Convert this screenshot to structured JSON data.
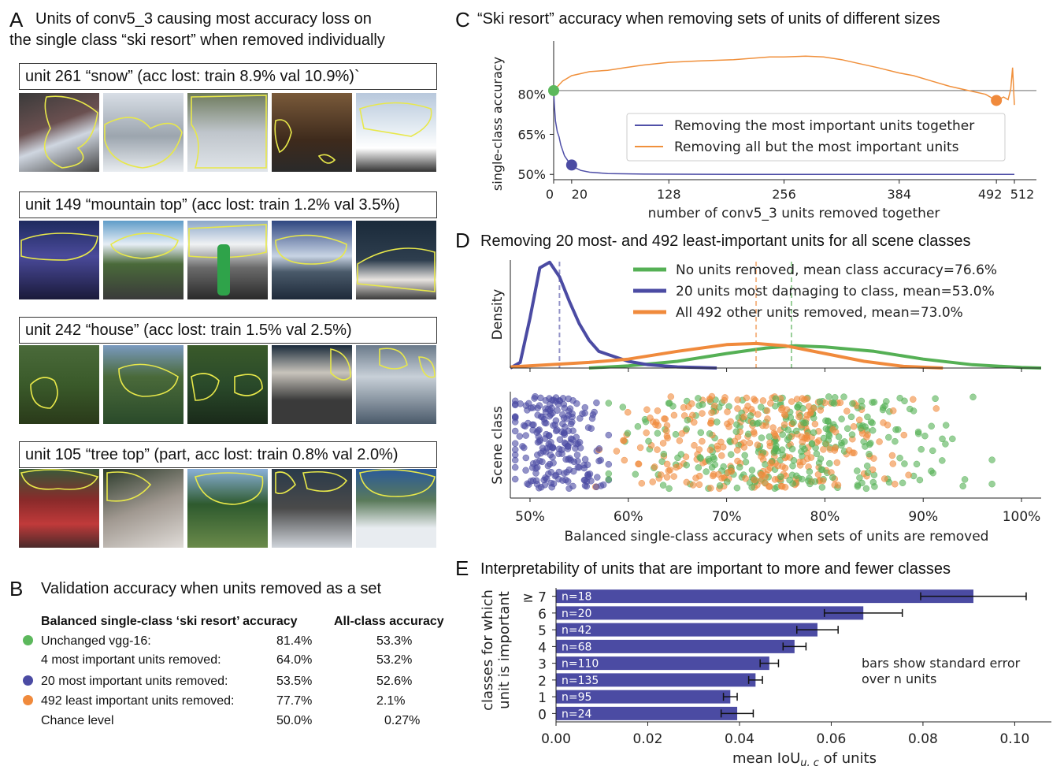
{
  "panelA": {
    "label": "A",
    "title_line1": "Units of conv5_3 causing most accuracy loss on",
    "title_line2": "the single class “ski resort” when removed individually",
    "units": [
      {
        "caption": "unit 261 “snow” (acc lost: train 8.9% val 10.9%)`"
      },
      {
        "caption": "unit 149 “mountain top” (acc lost: train 1.2% val 3.5%)"
      },
      {
        "caption": "unit 242 “house” (acc lost: train 1.5% val 2.5%)"
      },
      {
        "caption": "unit 105 “tree top” (part, acc lost: train 0.8% val 2.0%)"
      }
    ],
    "colors": {
      "outline": "#e8e84a"
    }
  },
  "panelB": {
    "label": "B",
    "title": "Validation accuracy when units removed as a set",
    "col1": "Balanced single-class ‘ski resort’ accuracy",
    "col2": "All-class accuracy",
    "rows": [
      {
        "label": "Unchanged vgg-16:",
        "v1": "81.4%",
        "v2": "53.3%",
        "dot": "#5cb85c"
      },
      {
        "label": "4 most important units removed:",
        "v1": "64.0%",
        "v2": "53.2%",
        "dot": ""
      },
      {
        "label": "20 most important units removed:",
        "v1": "53.5%",
        "v2": "52.6%",
        "dot": "#4b4ba3"
      },
      {
        "label": "492 least important units removed:",
        "v1": "77.7%",
        "v2": "2.1%",
        "dot": "#f08a3c"
      },
      {
        "label": "Chance level",
        "v1": "50.0%",
        "v2": "0.27%",
        "dot": ""
      }
    ]
  },
  "panelC": {
    "label": "C",
    "title": "“Ski resort” accuracy when removing sets of units of different sizes",
    "ylabel": "single-class accuracy",
    "xlabel": "number of conv5_3 units removed together",
    "legend": [
      {
        "name": "Removing the most important units together",
        "color": "#5050a8"
      },
      {
        "name": "Removing all but the most important units",
        "color": "#f0903c"
      }
    ]
  },
  "panelD": {
    "label": "D",
    "title": "Removing 20 most- and 492 least-important units for all scene classes",
    "density_ylabel": "Density",
    "scatter_ylabel": "Scene class",
    "xlabel": "Balanced single-class accuracy when sets of units are removed",
    "legend": [
      {
        "name": "No units removed, mean class accuracy=76.6%",
        "color": "#55b055"
      },
      {
        "name": "20 units most damaging to class, mean=53.0%",
        "color": "#4b4ba3"
      },
      {
        "name": "All 492 other units removed, mean=73.0%",
        "color": "#f08a3c"
      }
    ]
  },
  "panelE": {
    "label": "E",
    "title": "Interpretability of units that are important to more and fewer classes",
    "ylabel_line1": "classes for which",
    "ylabel_line2": "unit is important",
    "xlabel_prefix": "mean IoU",
    "xlabel_sub": "u, c",
    "xlabel_suffix": " of units",
    "note_line1": "bars show standard error",
    "note_line2": "over n units",
    "bar_color": "#4b4ba3"
  },
  "chart_data": [
    {
      "id": "C",
      "type": "line",
      "title": "“Ski resort” accuracy when removing sets of units of different sizes",
      "xlabel": "number of conv5_3 units removed together",
      "ylabel": "single-class accuracy",
      "xlim": [
        0,
        512
      ],
      "ylim": [
        48,
        100
      ],
      "xticks": [
        0,
        20,
        128,
        256,
        384,
        492,
        512
      ],
      "yticks": [
        50,
        65,
        80
      ],
      "ytick_labels": [
        "50%",
        "65%",
        "80%"
      ],
      "reference_line": 81.4,
      "series": [
        {
          "name": "Removing the most important units together",
          "color": "#5050a8",
          "x": [
            0,
            1,
            2,
            4,
            6,
            8,
            10,
            12,
            14,
            16,
            18,
            20,
            24,
            30,
            40,
            60,
            100,
            200,
            300,
            400,
            512
          ],
          "y": [
            81.4,
            75,
            70,
            66,
            64,
            61,
            59,
            57,
            56,
            55,
            54,
            53.5,
            52.5,
            51.5,
            50.8,
            50.3,
            50.1,
            50,
            50,
            50,
            50
          ]
        },
        {
          "name": "Removing all but the most important units",
          "color": "#f0903c",
          "x": [
            0,
            10,
            20,
            40,
            60,
            80,
            100,
            128,
            160,
            200,
            240,
            256,
            280,
            300,
            320,
            340,
            360,
            384,
            400,
            420,
            440,
            460,
            480,
            492,
            500,
            505,
            508,
            510,
            512
          ],
          "y": [
            81.4,
            85,
            87,
            88.5,
            89,
            90,
            91,
            92,
            92.5,
            93,
            94,
            94,
            94.3,
            94,
            93,
            91.5,
            90,
            88,
            87,
            85,
            83,
            81.5,
            80,
            77.7,
            79,
            78,
            82,
            90,
            76
          ]
        }
      ],
      "markers": [
        {
          "x": 0,
          "y": 81.4,
          "color": "#5cb85c"
        },
        {
          "x": 20,
          "y": 53.5,
          "color": "#4b4ba3"
        },
        {
          "x": 492,
          "y": 77.7,
          "color": "#f08a3c"
        }
      ]
    },
    {
      "id": "D-density",
      "type": "area",
      "xlabel": "Balanced single-class accuracy when sets of units are removed",
      "ylabel": "Density",
      "xlim": [
        48,
        102
      ],
      "xticks": [
        50,
        60,
        70,
        80,
        90,
        100
      ],
      "xtick_labels": [
        "50%",
        "60%",
        "70%",
        "80%",
        "90%",
        "100%"
      ],
      "series": [
        {
          "name": "No units removed, mean class accuracy=76.6%",
          "color": "#55b055",
          "mean": 76.6,
          "x": [
            56,
            60,
            65,
            70,
            74,
            77,
            80,
            85,
            90,
            95,
            100,
            102
          ],
          "y": [
            0,
            0.02,
            0.06,
            0.13,
            0.18,
            0.2,
            0.19,
            0.15,
            0.08,
            0.03,
            0.005,
            0
          ]
        },
        {
          "name": "20 units most damaging to class, mean=53.0%",
          "color": "#4b4ba3",
          "mean": 53.0,
          "x": [
            48,
            49,
            50,
            51,
            52,
            53,
            54,
            55,
            56,
            57,
            58,
            60,
            62,
            65,
            69
          ],
          "y": [
            0,
            0.05,
            0.45,
            0.9,
            0.95,
            0.82,
            0.6,
            0.4,
            0.25,
            0.15,
            0.12,
            0.06,
            0.03,
            0.01,
            0
          ]
        },
        {
          "name": "All 492 other units removed, mean=73.0%",
          "color": "#f08a3c",
          "mean": 73.0,
          "x": [
            48,
            52,
            56,
            60,
            65,
            70,
            73,
            76,
            80,
            84,
            88,
            92
          ],
          "y": [
            0.01,
            0.03,
            0.05,
            0.08,
            0.15,
            0.21,
            0.22,
            0.2,
            0.13,
            0.06,
            0.015,
            0
          ]
        }
      ]
    },
    {
      "id": "D-scatter",
      "type": "scatter",
      "xlabel": "Balanced single-class accuracy when sets of units are removed",
      "ylabel": "Scene class",
      "xlim": [
        48,
        102
      ],
      "series": [
        {
          "name": "20 units most damaging to class",
          "color": "#4b4ba3",
          "range": [
            48.5,
            58
          ]
        },
        {
          "name": "All 492 other units removed",
          "color": "#f08a3c",
          "range": [
            55,
            92
          ]
        },
        {
          "name": "No units removed",
          "color": "#55b055",
          "range": [
            58,
            97
          ]
        }
      ]
    },
    {
      "id": "E",
      "type": "bar",
      "title": "Interpretability of units that are important to more and fewer classes",
      "xlabel": "mean IoU_{u,c} of units",
      "ylabel": "classes for which unit is important",
      "xlim": [
        0,
        0.108
      ],
      "xticks": [
        0.0,
        0.02,
        0.04,
        0.06,
        0.08,
        0.1
      ],
      "xtick_labels": [
        "0.00",
        "0.02",
        "0.04",
        "0.06",
        "0.08",
        "0.10"
      ],
      "categories": [
        "≥ 7",
        "6",
        "5",
        "4",
        "3",
        "2",
        "1",
        "0"
      ],
      "bar_labels": [
        "n=18",
        "n=20",
        "n=42",
        "n=68",
        "n=110",
        "n=135",
        "n=95",
        "n=24"
      ],
      "values": [
        0.091,
        0.067,
        0.057,
        0.052,
        0.0465,
        0.0435,
        0.038,
        0.0395
      ],
      "errors": [
        0.0115,
        0.0085,
        0.0045,
        0.0025,
        0.002,
        0.0015,
        0.0015,
        0.0035
      ]
    }
  ]
}
